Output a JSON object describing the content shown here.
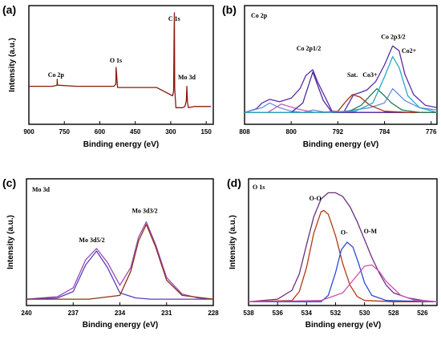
{
  "chart_data": [
    {
      "type": "line",
      "panel_label": "(a)",
      "title": "",
      "xlabel": "Binding energy (eV)",
      "ylabel": "Intensity (a.u.)",
      "xlim": [
        900,
        120
      ],
      "ylim": [
        0,
        100
      ],
      "xticks": [
        900,
        750,
        600,
        450,
        300,
        150
      ],
      "annotations": [
        {
          "text": "Co 2p",
          "x": 785,
          "y": 40
        },
        {
          "text": "O 1s",
          "x": 532,
          "y": 52
        },
        {
          "text": "C 1s",
          "x": 285,
          "y": 87
        },
        {
          "text": "Mo 3d",
          "x": 232,
          "y": 38
        }
      ],
      "series": [
        {
          "color": "#8b1a0e",
          "x": [
            900,
            800,
            781,
            780,
            779,
            700,
            600,
            540,
            532,
            531,
            525,
            420,
            360,
            292,
            288,
            285.5,
            284.5,
            283,
            278,
            250,
            240,
            234,
            232,
            229,
            225,
            200,
            150,
            130
          ],
          "y": [
            32,
            32,
            33,
            38,
            33,
            32,
            32,
            32,
            34,
            48,
            31,
            31,
            31,
            24,
            28,
            80,
            94,
            30,
            14,
            14,
            15,
            20,
            32,
            18,
            14,
            15,
            15,
            15
          ]
        }
      ]
    },
    {
      "type": "line",
      "panel_label": "(b)",
      "title": "Co 2p",
      "xlabel": "Binding energy (eV)",
      "ylabel": "",
      "xlim": [
        808,
        775
      ],
      "ylim": [
        0,
        100
      ],
      "xticks": [
        808,
        800,
        792,
        784,
        776
      ],
      "annotations": [
        {
          "text": "Co 2p1/2",
          "x": 797,
          "y": 62
        },
        {
          "text": "Sat.",
          "x": 789.5,
          "y": 40
        },
        {
          "text": "Co3+",
          "x": 786.5,
          "y": 40
        },
        {
          "text": "Co 2p3/2",
          "x": 782.5,
          "y": 72
        },
        {
          "text": "Co2+",
          "x": 779.8,
          "y": 60
        }
      ],
      "series": [
        {
          "color": "#5b2ca8",
          "x": [
            808,
            806,
            805,
            803.7,
            802,
            800,
            798.5,
            797.5,
            796.3,
            795.5,
            793,
            791,
            789.3,
            788,
            787,
            785.5,
            784,
            782.6,
            781.5,
            780.5,
            779,
            777,
            775
          ],
          "y": [
            10,
            13,
            18,
            21,
            19,
            22,
            30,
            41,
            46,
            36,
            11,
            10,
            25,
            27,
            29,
            36,
            50,
            66,
            62,
            42,
            25,
            16,
            14
          ]
        },
        {
          "color": "#6a8fd8",
          "x": [
            808,
            805,
            803.7,
            802,
            800,
            798,
            796.3,
            794,
            792,
            789.3,
            786.5,
            784,
            782.6,
            780.5,
            778,
            775
          ],
          "y": [
            10,
            14,
            18,
            14,
            11,
            10,
            12,
            10,
            10,
            12,
            14,
            18,
            30,
            20,
            14,
            12
          ]
        },
        {
          "color": "#c060b0",
          "x": [
            808,
            804,
            801.7,
            799,
            796,
            793,
            790,
            786,
            780,
            775
          ],
          "y": [
            10,
            10,
            17,
            13,
            10,
            10,
            10,
            10,
            10,
            10
          ]
        },
        {
          "color": "#4a2ca0",
          "x": [
            808,
            800,
            798,
            796.3,
            794.5,
            793,
            790,
            786,
            780,
            775
          ],
          "y": [
            10,
            10,
            18,
            44,
            20,
            10,
            10,
            10,
            10,
            10
          ]
        },
        {
          "color": "#b03010",
          "x": [
            808,
            795,
            792,
            790.5,
            789.5,
            788.2,
            786.5,
            784,
            780,
            775
          ],
          "y": [
            10,
            10,
            11,
            20,
            25,
            23,
            16,
            11,
            10,
            10
          ]
        },
        {
          "color": "#2a7a5a",
          "x": [
            808,
            795,
            790,
            788,
            786.5,
            785.3,
            784,
            782.8,
            781,
            778,
            775
          ],
          "y": [
            10,
            10,
            11,
            16,
            24,
            30,
            24,
            18,
            12,
            10,
            10
          ]
        },
        {
          "color": "#2aa8c8",
          "x": [
            808,
            795,
            789,
            786,
            784,
            782.6,
            781.5,
            780,
            778,
            775
          ],
          "y": [
            10,
            10,
            11,
            18,
            40,
            57,
            48,
            24,
            14,
            10
          ]
        }
      ]
    },
    {
      "type": "line",
      "panel_label": "(c)",
      "title": "Mo 3d",
      "xlabel": "Binding energy (eV)",
      "ylabel": "Intensity (a.u.)",
      "xlim": [
        240,
        228
      ],
      "ylim": [
        0,
        100
      ],
      "xticks": [
        240,
        237,
        234,
        231,
        228
      ],
      "annotations": [
        {
          "text": "Mo 3d5/2",
          "x": 235.8,
          "y": 50
        },
        {
          "text": "Mo 3d3/2",
          "x": 232.4,
          "y": 73
        }
      ],
      "series": [
        {
          "color": "#9a4ab5",
          "x": [
            240,
            238,
            237,
            236.2,
            235.5,
            234.8,
            234,
            233.3,
            232.8,
            232.3,
            231.7,
            231,
            230,
            229,
            228
          ],
          "y": [
            5,
            7,
            14,
            36,
            45,
            34,
            16,
            30,
            54,
            66,
            48,
            22,
            9,
            6,
            5
          ]
        },
        {
          "color": "#5a3cc0",
          "x": [
            240,
            238,
            237,
            236.2,
            235.5,
            234.8,
            234,
            233,
            232,
            230,
            228
          ],
          "y": [
            5,
            6,
            11,
            32,
            43,
            30,
            10,
            6,
            5,
            5,
            5
          ]
        },
        {
          "color": "#8a3018",
          "x": [
            240,
            236,
            234,
            233.3,
            232.8,
            232.3,
            231.7,
            231,
            230,
            228
          ],
          "y": [
            5,
            5,
            8,
            27,
            51,
            64,
            46,
            20,
            8,
            5
          ]
        }
      ]
    },
    {
      "type": "line",
      "panel_label": "(d)",
      "title": "O 1s",
      "xlabel": "Binding  energy  (eV)",
      "ylabel": "Intensity (a.u.)",
      "xlim": [
        538,
        525
      ],
      "ylim": [
        0,
        100
      ],
      "xticks": [
        538,
        536,
        534,
        532,
        530,
        528,
        526
      ],
      "annotations": [
        {
          "text": "O-O",
          "x": 533.4,
          "y": 83
        },
        {
          "text": "O-",
          "x": 531.4,
          "y": 56
        },
        {
          "text": "O-M",
          "x": 529.6,
          "y": 57
        }
      ],
      "series": [
        {
          "color": "#6a3080",
          "x": [
            538,
            536,
            535,
            534.5,
            534,
            533.5,
            533,
            532.5,
            532,
            531.5,
            531,
            530.5,
            530,
            529.5,
            529,
            528.5,
            528,
            527,
            526,
            525
          ],
          "y": [
            3,
            5,
            12,
            25,
            48,
            70,
            84,
            89,
            89,
            86,
            78,
            66,
            52,
            38,
            26,
            16,
            10,
            6,
            4,
            3
          ]
        },
        {
          "color": "#b03a12",
          "x": [
            538,
            535,
            534.5,
            534,
            533.5,
            533,
            532.8,
            532.5,
            532,
            531.5,
            531,
            530.5,
            530,
            528,
            525
          ],
          "y": [
            3,
            4,
            11,
            30,
            57,
            74,
            75,
            72,
            55,
            33,
            16,
            7,
            4,
            3,
            3
          ]
        },
        {
          "color": "#2a4ad8",
          "x": [
            538,
            533,
            532.5,
            532,
            531.6,
            531.2,
            530.8,
            530.4,
            530,
            529.5,
            528.5,
            525
          ],
          "y": [
            3,
            3,
            8,
            26,
            44,
            50,
            46,
            33,
            18,
            8,
            4,
            3
          ]
        },
        {
          "color": "#d050b0",
          "x": [
            538,
            533,
            531.5,
            531,
            530.5,
            530,
            529.5,
            529,
            528.5,
            527.5,
            526.5,
            525
          ],
          "y": [
            3,
            4,
            10,
            17,
            24,
            31,
            32,
            27,
            19,
            8,
            4,
            3
          ]
        }
      ]
    }
  ]
}
